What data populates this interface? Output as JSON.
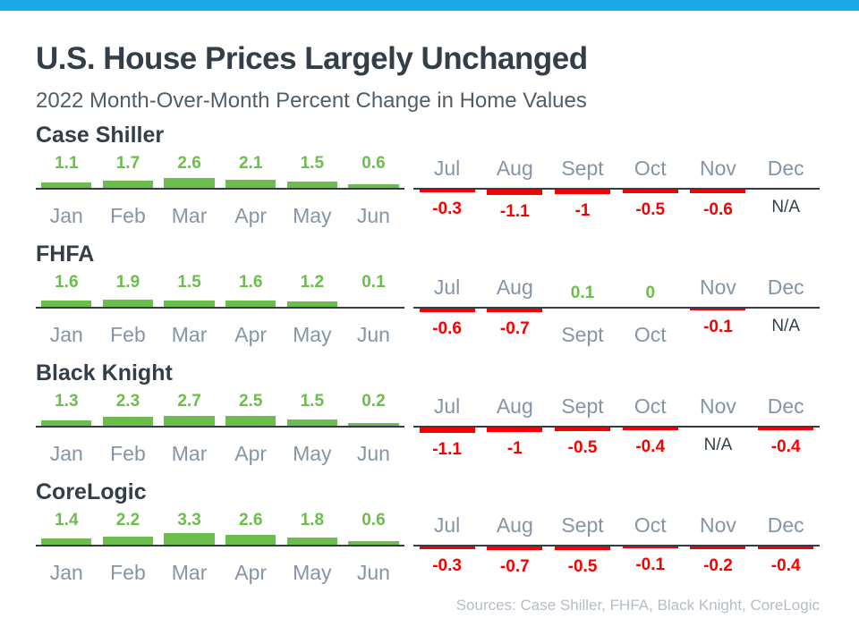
{
  "header": {
    "title": "U.S. House Prices Largely Unchanged",
    "subtitle": "2022 Month-Over-Month Percent Change in Home Values"
  },
  "footer": {
    "sources": "Sources: Case Shiller, FHFA, Black Knight, CoreLogic"
  },
  "colors": {
    "accent_bar": "#1BA8E6",
    "positive": "#6CBE4C",
    "negative": "#F90000",
    "heading": "#333E48",
    "month": "#8595A6",
    "baseline": "#333C45",
    "subtitle": "#515E68",
    "footer": "#B4BDC7",
    "na": "#333E48"
  },
  "chart_data": {
    "type": "bar",
    "title": "U.S. House Prices Largely Unchanged",
    "subtitle": "2022 Month-Over-Month Percent Change in Home Values",
    "unit": "percent",
    "categories": [
      "Jan",
      "Feb",
      "Mar",
      "Apr",
      "May",
      "Jun",
      "Jul",
      "Aug",
      "Sept",
      "Oct",
      "Nov",
      "Dec"
    ],
    "na_label": "N/A",
    "series": [
      {
        "name": "Case Shiller",
        "values": [
          "1.1",
          "1.7",
          "2.6",
          "2.1",
          "1.5",
          "0.6",
          "-0.3",
          "-1.1",
          "-1",
          "-0.5",
          "-0.6",
          "N/A"
        ]
      },
      {
        "name": "FHFA",
        "values": [
          "1.6",
          "1.9",
          "1.5",
          "1.6",
          "1.2",
          "0.1",
          "-0.6",
          "-0.7",
          "0.1",
          "0",
          "-0.1",
          "N/A"
        ]
      },
      {
        "name": "Black Knight",
        "values": [
          "1.3",
          "2.3",
          "2.7",
          "2.5",
          "1.5",
          "0.2",
          "-1.1",
          "-1",
          "-0.5",
          "-0.4",
          "N/A",
          "-0.4"
        ]
      },
      {
        "name": "CoreLogic",
        "values": [
          "1.4",
          "2.2",
          "3.3",
          "2.6",
          "1.8",
          "0.6",
          "-0.3",
          "-0.7",
          "-0.5",
          "-0.1",
          "-0.2",
          "-0.4"
        ]
      }
    ],
    "layout": {
      "positive_months_side": "left",
      "negative_months_side": "right",
      "grid": false,
      "legend": false
    }
  }
}
